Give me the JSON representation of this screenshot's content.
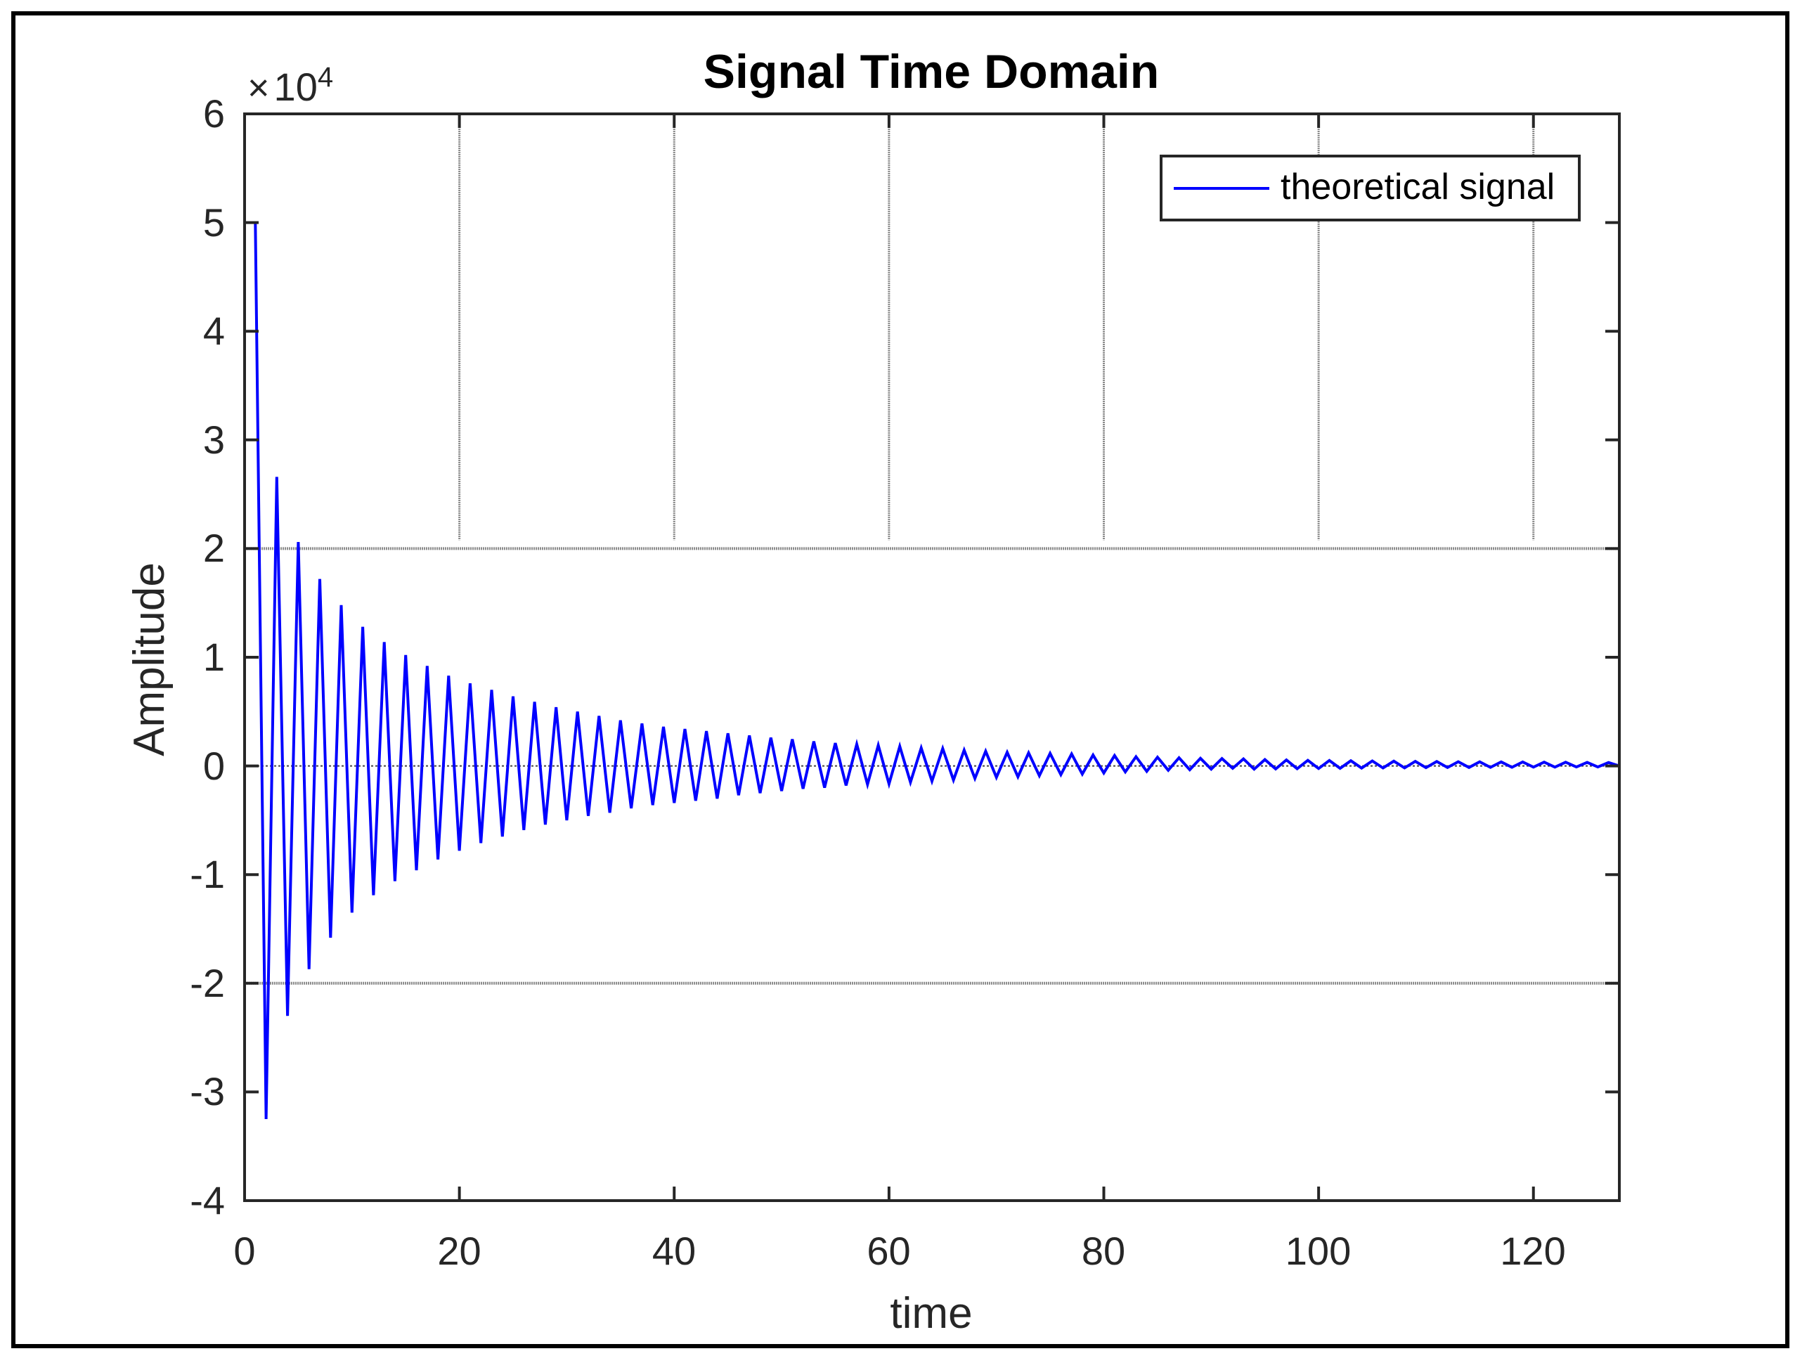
{
  "figure": {
    "title": "Signal Time Domain",
    "xlabel": "time",
    "ylabel": "Amplitude",
    "y_exponent": {
      "times": "×",
      "base": "10",
      "power": "4"
    },
    "legend": {
      "label": "theoretical signal",
      "line_color": "#0000ff"
    },
    "yticks": [
      "6",
      "5",
      "4",
      "3",
      "2",
      "1",
      "0",
      "-1",
      "-2",
      "-3",
      "-4"
    ],
    "xticks": [
      "0",
      "20",
      "40",
      "60",
      "80",
      "100",
      "120"
    ]
  },
  "colors": {
    "series": "#0000ff",
    "axes": "#262626",
    "grid": "#8c8c8c",
    "frame": "#000000"
  },
  "chart_data": {
    "type": "line",
    "title": "Signal Time Domain",
    "xlabel": "time",
    "ylabel": "Amplitude",
    "y_scale_label": "×10^4",
    "xlim": [
      0,
      128
    ],
    "ylim": [
      -40000,
      60000
    ],
    "xticks": [
      0,
      20,
      40,
      60,
      80,
      100,
      120
    ],
    "yticks": [
      -40000,
      -30000,
      -20000,
      -10000,
      0,
      10000,
      20000,
      30000,
      40000,
      50000,
      60000
    ],
    "grid": "partial: vertical gridlines at x ticks (upper region only), horizontal gridlines at y=±20000, dotted line at 0",
    "legend_position": "upper right",
    "series": [
      {
        "name": "theoretical signal",
        "color": "#0000ff",
        "x": [
          1,
          2,
          3,
          4,
          5,
          6,
          7,
          8,
          9,
          10,
          11,
          12,
          13,
          14,
          15,
          16,
          17,
          18,
          19,
          20,
          21,
          22,
          23,
          24,
          25,
          26,
          27,
          28,
          29,
          30,
          31,
          32,
          33,
          34,
          35,
          36,
          37,
          38,
          39,
          40,
          41,
          42,
          43,
          44,
          45,
          46,
          47,
          48,
          49,
          50,
          51,
          52,
          53,
          54,
          55,
          56,
          57,
          58,
          59,
          60,
          61,
          62,
          63,
          64,
          65,
          66,
          67,
          68,
          69,
          70,
          71,
          72,
          73,
          74,
          75,
          76,
          77,
          78,
          79,
          80,
          81,
          82,
          83,
          84,
          85,
          86,
          87,
          88,
          89,
          90,
          91,
          92,
          93,
          94,
          95,
          96,
          97,
          98,
          99,
          100,
          101,
          102,
          103,
          104,
          105,
          106,
          107,
          108,
          109,
          110,
          111,
          112,
          113,
          114,
          115,
          116,
          117,
          118,
          119,
          120,
          121,
          122,
          123,
          124,
          125,
          126,
          127,
          128
        ],
        "y": [
          50000,
          -32500,
          26600,
          -23000,
          20600,
          -18700,
          17200,
          -15800,
          14800,
          -13500,
          12800,
          -11900,
          11400,
          -10600,
          10200,
          -9600,
          9200,
          -8600,
          8300,
          -7800,
          7600,
          -7100,
          7000,
          -6500,
          6400,
          -5900,
          5900,
          -5400,
          5400,
          -5000,
          5000,
          -4600,
          4600,
          -4300,
          4200,
          -3900,
          3900,
          -3600,
          3600,
          -3400,
          3400,
          -3200,
          3200,
          -3000,
          3000,
          -2700,
          2800,
          -2500,
          2600,
          -2300,
          2450,
          -2100,
          2260,
          -2000,
          2100,
          -1800,
          2000,
          -1700,
          1900,
          -1650,
          1800,
          -1500,
          1650,
          -1400,
          1600,
          -1300,
          1450,
          -1150,
          1350,
          -1050,
          1250,
          -1000,
          1200,
          -900,
          1150,
          -800,
          1100,
          -750,
          1000,
          -650,
          950,
          -550,
          850,
          -500,
          800,
          -400,
          750,
          -350,
          700,
          -300,
          680,
          -220,
          650,
          -300,
          580,
          -280,
          550,
          -260,
          520,
          -240,
          500,
          -220,
          480,
          -200,
          460,
          -190,
          440,
          -180,
          420,
          -160,
          410,
          -150,
          390,
          -140,
          380,
          -130,
          370,
          -120,
          360,
          -110,
          350,
          -110,
          340,
          -100,
          330,
          -100,
          320,
          0
        ]
      }
    ]
  }
}
